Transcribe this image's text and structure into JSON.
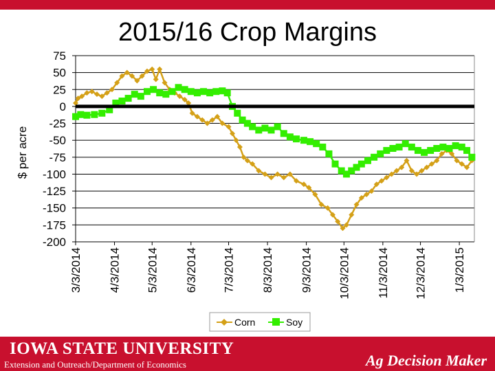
{
  "header": {
    "title": "2015/16 Crop Margins"
  },
  "footer": {
    "university": "IOWA STATE UNIVERSITY",
    "department": "Extension and Outreach/Department of Economics",
    "brand": "Ag Decision Maker"
  },
  "colors": {
    "corn": "#d4a017",
    "soy": "#33ee00",
    "brand_red": "#c8102e",
    "zero_line": "#000000"
  },
  "chart_data": {
    "type": "line",
    "title": "2015/16 Crop Margins",
    "ylabel": "$ per acre",
    "xlabel": "",
    "ylim": [
      -200,
      75
    ],
    "yticks": [
      75,
      50,
      25,
      0,
      -25,
      -50,
      -75,
      -100,
      -125,
      -150,
      -175,
      -200
    ],
    "xlim": [
      "2014-03-03",
      "2015-01-15"
    ],
    "x_tick_labels": [
      "3/3/2014",
      "4/3/2014",
      "5/3/2014",
      "6/3/2014",
      "7/3/2014",
      "8/3/2014",
      "9/3/2014",
      "10/3/2014",
      "11/3/2014",
      "12/3/2014",
      "1/3/2015"
    ],
    "x_tick_dates": [
      "2014-03-03",
      "2014-04-03",
      "2014-05-03",
      "2014-06-03",
      "2014-07-03",
      "2014-08-03",
      "2014-09-03",
      "2014-10-03",
      "2014-11-03",
      "2014-12-03",
      "2015-01-03"
    ],
    "grid": true,
    "legend": "bottom",
    "series": [
      {
        "name": "Corn",
        "points": [
          [
            "2014-03-03",
            5
          ],
          [
            "2014-03-05",
            12
          ],
          [
            "2014-03-08",
            15
          ],
          [
            "2014-03-12",
            20
          ],
          [
            "2014-03-16",
            22
          ],
          [
            "2014-03-20",
            18
          ],
          [
            "2014-03-24",
            15
          ],
          [
            "2014-03-28",
            20
          ],
          [
            "2014-04-01",
            25
          ],
          [
            "2014-04-05",
            35
          ],
          [
            "2014-04-09",
            45
          ],
          [
            "2014-04-13",
            50
          ],
          [
            "2014-04-17",
            45
          ],
          [
            "2014-04-21",
            38
          ],
          [
            "2014-04-25",
            45
          ],
          [
            "2014-04-29",
            52
          ],
          [
            "2014-05-03",
            55
          ],
          [
            "2014-05-06",
            40
          ],
          [
            "2014-05-09",
            55
          ],
          [
            "2014-05-13",
            35
          ],
          [
            "2014-05-17",
            25
          ],
          [
            "2014-05-21",
            20
          ],
          [
            "2014-05-25",
            15
          ],
          [
            "2014-05-29",
            10
          ],
          [
            "2014-06-01",
            5
          ],
          [
            "2014-06-04",
            -10
          ],
          [
            "2014-06-08",
            -15
          ],
          [
            "2014-06-12",
            -20
          ],
          [
            "2014-06-16",
            -25
          ],
          [
            "2014-06-20",
            -20
          ],
          [
            "2014-06-24",
            -15
          ],
          [
            "2014-06-28",
            -25
          ],
          [
            "2014-07-03",
            -30
          ],
          [
            "2014-07-06",
            -40
          ],
          [
            "2014-07-09",
            -50
          ],
          [
            "2014-07-12",
            -60
          ],
          [
            "2014-07-15",
            -75
          ],
          [
            "2014-07-18",
            -80
          ],
          [
            "2014-07-22",
            -85
          ],
          [
            "2014-07-27",
            -95
          ],
          [
            "2014-08-01",
            -100
          ],
          [
            "2014-08-06",
            -105
          ],
          [
            "2014-08-11",
            -100
          ],
          [
            "2014-08-16",
            -105
          ],
          [
            "2014-08-21",
            -100
          ],
          [
            "2014-08-26",
            -110
          ],
          [
            "2014-09-01",
            -115
          ],
          [
            "2014-09-05",
            -120
          ],
          [
            "2014-09-10",
            -130
          ],
          [
            "2014-09-15",
            -145
          ],
          [
            "2014-09-20",
            -150
          ],
          [
            "2014-09-24",
            -160
          ],
          [
            "2014-09-28",
            -170
          ],
          [
            "2014-10-02",
            -180
          ],
          [
            "2014-10-05",
            -175
          ],
          [
            "2014-10-09",
            -160
          ],
          [
            "2014-10-13",
            -145
          ],
          [
            "2014-10-17",
            -135
          ],
          [
            "2014-10-21",
            -130
          ],
          [
            "2014-10-25",
            -125
          ],
          [
            "2014-10-29",
            -115
          ],
          [
            "2014-11-02",
            -110
          ],
          [
            "2014-11-06",
            -105
          ],
          [
            "2014-11-10",
            -100
          ],
          [
            "2014-11-14",
            -95
          ],
          [
            "2014-11-18",
            -90
          ],
          [
            "2014-11-22",
            -80
          ],
          [
            "2014-11-26",
            -95
          ],
          [
            "2014-11-30",
            -100
          ],
          [
            "2014-12-04",
            -95
          ],
          [
            "2014-12-08",
            -90
          ],
          [
            "2014-12-12",
            -85
          ],
          [
            "2014-12-16",
            -80
          ],
          [
            "2014-12-20",
            -70
          ],
          [
            "2014-12-24",
            -65
          ],
          [
            "2014-12-28",
            -70
          ],
          [
            "2015-01-01",
            -80
          ],
          [
            "2015-01-05",
            -85
          ],
          [
            "2015-01-09",
            -90
          ],
          [
            "2015-01-13",
            -80
          ]
        ]
      },
      {
        "name": "Soy",
        "points": [
          [
            "2014-03-03",
            -15
          ],
          [
            "2014-03-07",
            -12
          ],
          [
            "2014-03-12",
            -13
          ],
          [
            "2014-03-18",
            -12
          ],
          [
            "2014-03-24",
            -10
          ],
          [
            "2014-03-30",
            -5
          ],
          [
            "2014-04-04",
            5
          ],
          [
            "2014-04-09",
            8
          ],
          [
            "2014-04-14",
            12
          ],
          [
            "2014-04-19",
            18
          ],
          [
            "2014-04-24",
            15
          ],
          [
            "2014-04-29",
            22
          ],
          [
            "2014-05-04",
            25
          ],
          [
            "2014-05-09",
            20
          ],
          [
            "2014-05-14",
            18
          ],
          [
            "2014-05-19",
            22
          ],
          [
            "2014-05-24",
            28
          ],
          [
            "2014-05-29",
            25
          ],
          [
            "2014-06-03",
            22
          ],
          [
            "2014-06-08",
            20
          ],
          [
            "2014-06-13",
            22
          ],
          [
            "2014-06-18",
            20
          ],
          [
            "2014-06-23",
            22
          ],
          [
            "2014-06-28",
            23
          ],
          [
            "2014-07-02",
            20
          ],
          [
            "2014-07-06",
            0
          ],
          [
            "2014-07-10",
            -10
          ],
          [
            "2014-07-14",
            -20
          ],
          [
            "2014-07-18",
            -25
          ],
          [
            "2014-07-22",
            -30
          ],
          [
            "2014-07-27",
            -35
          ],
          [
            "2014-08-01",
            -32
          ],
          [
            "2014-08-06",
            -35
          ],
          [
            "2014-08-11",
            -30
          ],
          [
            "2014-08-16",
            -40
          ],
          [
            "2014-08-21",
            -45
          ],
          [
            "2014-08-26",
            -48
          ],
          [
            "2014-09-01",
            -50
          ],
          [
            "2014-09-06",
            -52
          ],
          [
            "2014-09-11",
            -55
          ],
          [
            "2014-09-16",
            -60
          ],
          [
            "2014-09-21",
            -70
          ],
          [
            "2014-09-26",
            -85
          ],
          [
            "2014-10-01",
            -95
          ],
          [
            "2014-10-05",
            -100
          ],
          [
            "2014-10-09",
            -95
          ],
          [
            "2014-10-13",
            -90
          ],
          [
            "2014-10-17",
            -85
          ],
          [
            "2014-10-22",
            -80
          ],
          [
            "2014-10-27",
            -75
          ],
          [
            "2014-11-01",
            -70
          ],
          [
            "2014-11-06",
            -65
          ],
          [
            "2014-11-11",
            -62
          ],
          [
            "2014-11-16",
            -60
          ],
          [
            "2014-11-21",
            -55
          ],
          [
            "2014-11-26",
            -60
          ],
          [
            "2014-12-01",
            -65
          ],
          [
            "2014-12-06",
            -68
          ],
          [
            "2014-12-11",
            -65
          ],
          [
            "2014-12-16",
            -62
          ],
          [
            "2014-12-21",
            -60
          ],
          [
            "2014-12-26",
            -62
          ],
          [
            "2014-12-31",
            -58
          ],
          [
            "2015-01-05",
            -60
          ],
          [
            "2015-01-09",
            -65
          ],
          [
            "2015-01-13",
            -75
          ]
        ]
      }
    ]
  }
}
